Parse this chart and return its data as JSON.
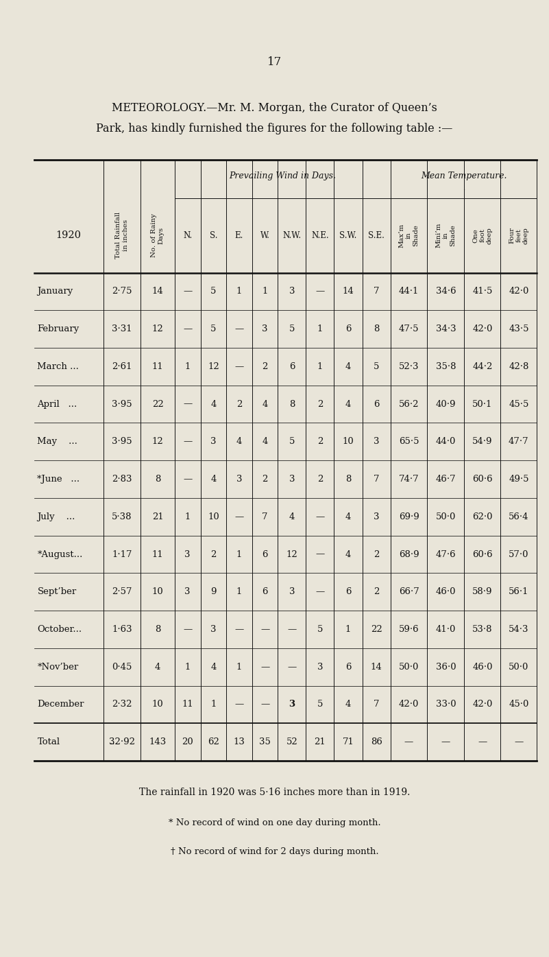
{
  "page_number": "17",
  "title_line1": "METEOROLOGY.—Mr. M. Morgan, the Curator of Queen’s",
  "title_line2": "Park, has kindly furnished the figures for the following table :—",
  "year": "1920",
  "wind_header": "Prevailing Wind in Days.",
  "temp_header": "Mean Temperature.",
  "temp_dot": "·",
  "col_headers": [
    "Total Rainfall\nin inches",
    "No. of Rainy\nDays",
    "N.",
    "S.",
    "E.",
    "W.",
    "N.W.",
    "N.E.",
    "S.W.",
    "S.E.",
    "Max’m\nin\nShade",
    "Mini’m\nin\nShade",
    "One\nfoot\ndeep",
    "Four\nfeet\ndeep"
  ],
  "months": [
    "January",
    "February",
    "March ...",
    "April   ...",
    "May    ...",
    "*June   ...",
    "July    ...",
    "*August...",
    "Sept’ber",
    "October...",
    "*Nov’ber",
    "December"
  ],
  "rows": [
    [
      "2·75",
      "14",
      "—",
      "5",
      "1",
      "1",
      "3",
      "—",
      "14",
      "7",
      "44·1",
      "34·6",
      "41·5",
      "42·0"
    ],
    [
      "3·31",
      "12",
      "—",
      "5",
      "—",
      "3",
      "5",
      "1",
      "6",
      "8",
      "47·5",
      "34·3",
      "42·0",
      "43·5"
    ],
    [
      "2·61",
      "11",
      "1",
      "12",
      "—",
      "2",
      "6",
      "1",
      "4",
      "5",
      "52·3",
      "35·8",
      "44·2",
      "42·8"
    ],
    [
      "3·95",
      "22",
      "—",
      "4",
      "2",
      "4",
      "8",
      "2",
      "4",
      "6",
      "56·2",
      "40·9",
      "50·1",
      "45·5"
    ],
    [
      "3·95",
      "12",
      "—",
      "3",
      "4",
      "4",
      "5",
      "2",
      "10",
      "3",
      "65·5",
      "44·0",
      "54·9",
      "47·7"
    ],
    [
      "2·83",
      "8",
      "—",
      "4",
      "3",
      "2",
      "3",
      "2",
      "8",
      "7",
      "74·7",
      "46·7",
      "60·6",
      "49·5"
    ],
    [
      "5·38",
      "21",
      "1",
      "10",
      "—",
      "7",
      "4",
      "—",
      "4",
      "3",
      "69·9",
      "50·0",
      "62·0",
      "56·4"
    ],
    [
      "1·17",
      "11",
      "3",
      "2",
      "1",
      "6",
      "12",
      "—",
      "4",
      "2",
      "68·9",
      "47·6",
      "60·6",
      "57·0"
    ],
    [
      "2·57",
      "10",
      "3",
      "9",
      "1",
      "6",
      "3",
      "—",
      "6",
      "2",
      "66·7",
      "46·0",
      "58·9",
      "56·1"
    ],
    [
      "1·63",
      "8",
      "—",
      "3",
      "—",
      "—",
      "—",
      "5",
      "1",
      "22",
      "59·6",
      "41·0",
      "53·8",
      "54·3"
    ],
    [
      "0·45",
      "4",
      "1",
      "4",
      "1",
      "—",
      "—",
      "3",
      "6",
      "14",
      "50·0",
      "36·0",
      "46·0",
      "50·0"
    ],
    [
      "2·32",
      "10",
      "11",
      "1",
      "—",
      "—",
      "3",
      "5",
      "4",
      "7",
      "42·0",
      "33·0",
      "42·0",
      "45·0"
    ]
  ],
  "total_label": "Total",
  "total_dots": "...",
  "total_row": [
    "32·92",
    "143",
    "20",
    "62",
    "13",
    "35",
    "52",
    "21",
    "71",
    "86",
    "—",
    "—",
    "—",
    "—"
  ],
  "footnote1": "The rainfall in 1920 was 5·16 inches more than in 1919.",
  "footnote2": "* No record of wind on one day during month.",
  "footnote3": "† No record of wind for 2 days during month.",
  "bg_color": "#e9e5d9",
  "text_color": "#111111",
  "bold_cells": [
    [
      11,
      6
    ]
  ],
  "total_bold_cols": []
}
